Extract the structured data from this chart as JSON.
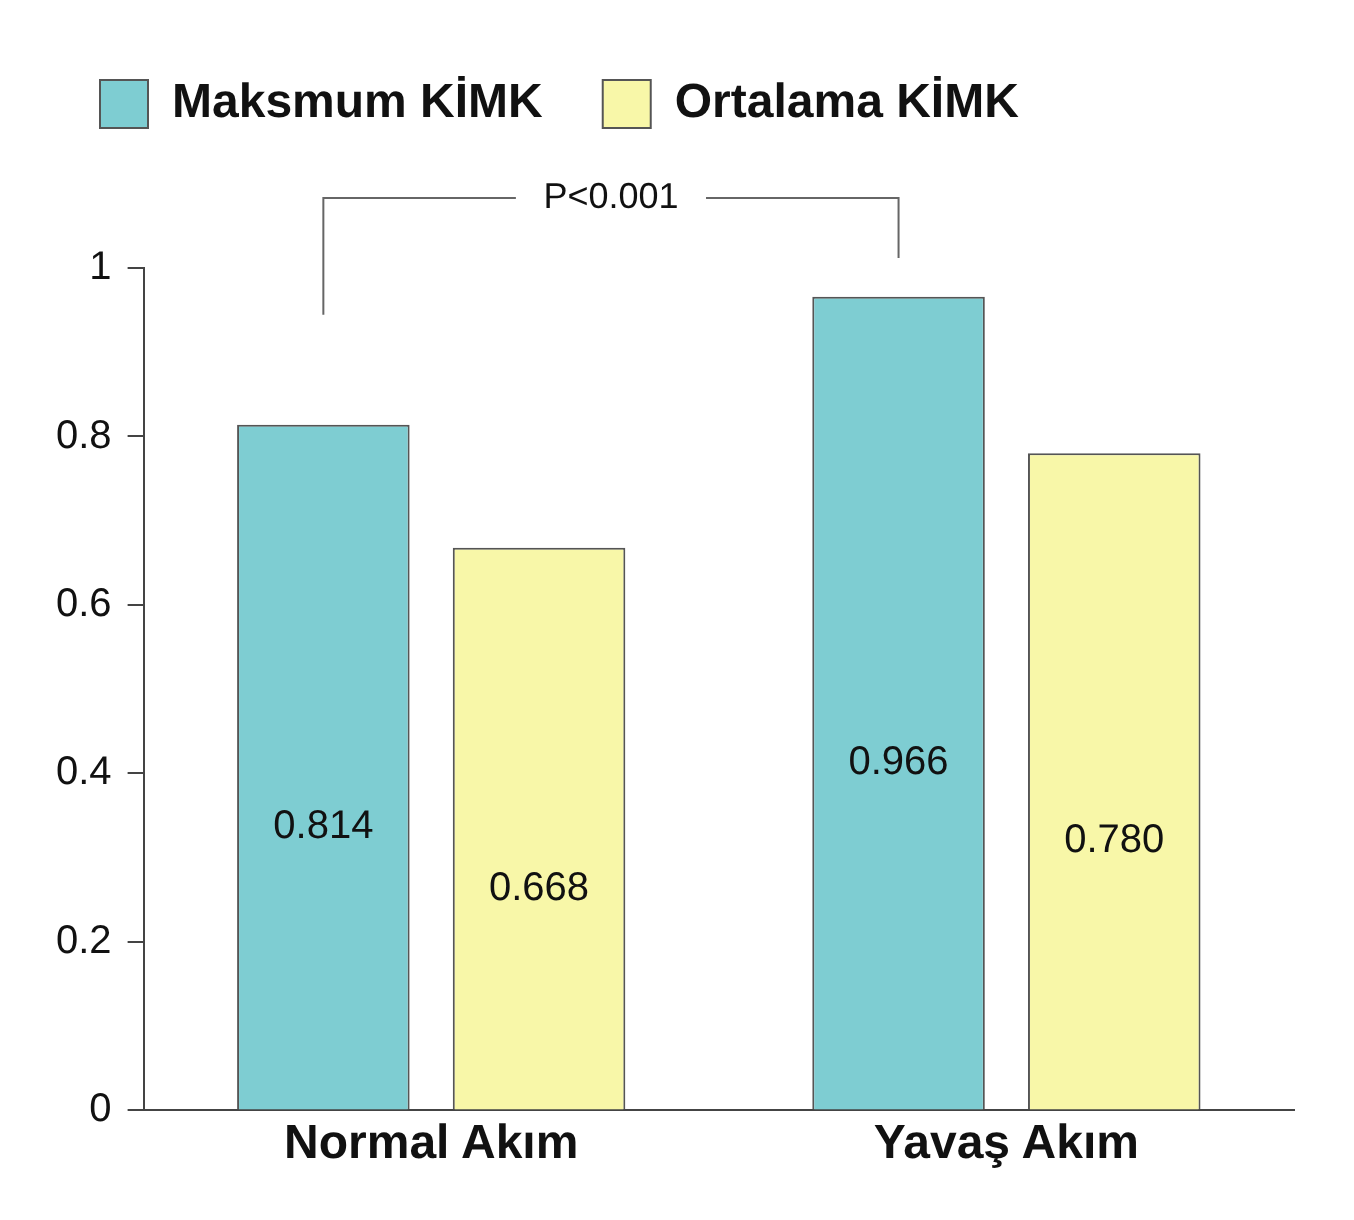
{
  "chart_data": {
    "type": "bar",
    "categories": [
      "Normal Akım",
      "Yavaş Akım"
    ],
    "series": [
      {
        "name": "Maksmum KİMK",
        "color": "#7ecdd2",
        "values": [
          0.814,
          0.966
        ],
        "value_labels": [
          "0.814",
          "0.966"
        ]
      },
      {
        "name": "Ortalama KİMK",
        "color": "#f8f7a8",
        "values": [
          0.668,
          0.78
        ],
        "value_labels": [
          "0.668",
          "0.780"
        ]
      }
    ],
    "ylim": [
      0,
      1
    ],
    "yticks": [
      0,
      {
        "value": 0.2,
        "label": "0.2"
      },
      {
        "value": 0.4,
        "label": "0.4"
      },
      {
        "value": 0.6,
        "label": "0.6"
      },
      {
        "value": 0.8,
        "label": "0.8"
      },
      1
    ],
    "grid": false,
    "legend": "top left",
    "annotations": [
      "P<0.001"
    ]
  }
}
